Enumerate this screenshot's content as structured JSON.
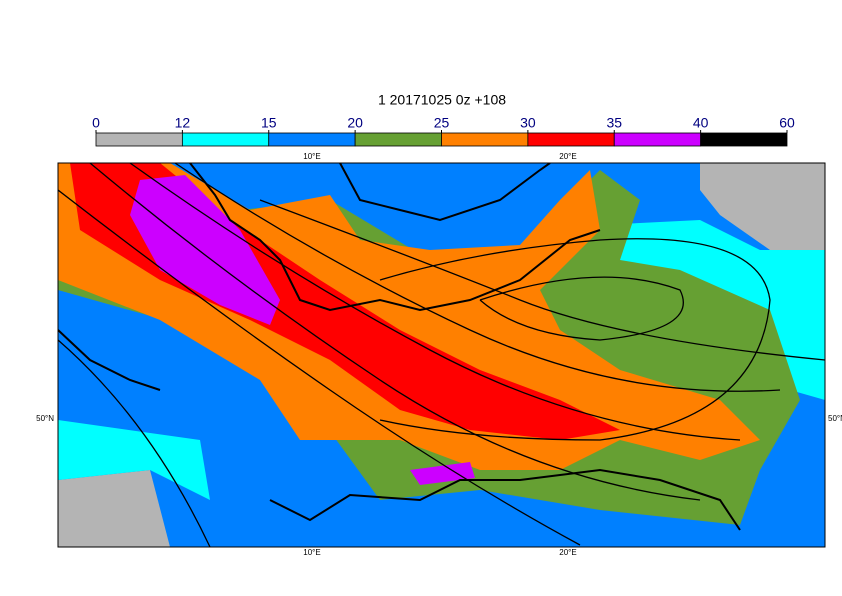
{
  "title": "1 20171025 0z +108",
  "colorbar": {
    "levels": [
      0,
      12,
      15,
      20,
      25,
      30,
      35,
      40,
      60
    ],
    "colors": [
      "#b4b4b4",
      "#00ffff",
      "#0080ff",
      "#66a033",
      "#ff8000",
      "#ff0000",
      "#cc00ff",
      "#000000"
    ]
  },
  "map": {
    "lon_labels": [
      "10°E",
      "20°E"
    ],
    "lat_labels": [
      "50°N"
    ]
  }
}
